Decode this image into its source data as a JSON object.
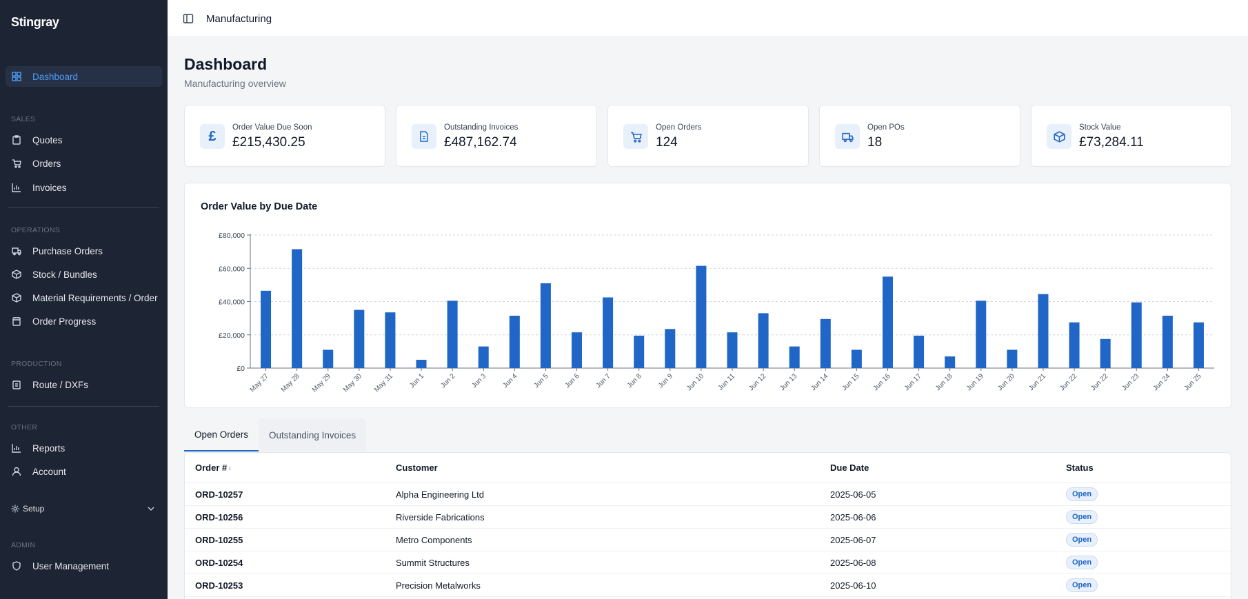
{
  "app": {
    "brand": "Stingray"
  },
  "sidebar": {
    "dashboard": "Dashboard",
    "sections": {
      "sales": "SALES",
      "operations": "OPERATIONS",
      "production": "PRODUCTION",
      "other": "OTHER",
      "admin": "ADMIN"
    },
    "sales_items": [
      "Quotes",
      "Orders",
      "Invoices"
    ],
    "operations_items": [
      "Purchase Orders",
      "Stock / Bundles",
      "Material Requirements / Order",
      "Order Progress"
    ],
    "production_items": [
      "Route / DXFs"
    ],
    "other_items": [
      "Reports",
      "Account"
    ],
    "setup": "Setup",
    "admin_items": [
      "User Management"
    ]
  },
  "topbar": {
    "breadcrumb": "Manufacturing"
  },
  "page": {
    "title": "Dashboard",
    "subtitle": "Manufacturing overview"
  },
  "kpis": [
    {
      "label": "Order Value Due Soon",
      "value": "£215,430.25",
      "icon": "pound-icon"
    },
    {
      "label": "Outstanding Invoices",
      "value": "£487,162.74",
      "icon": "document-icon"
    },
    {
      "label": "Open Orders",
      "value": "124",
      "icon": "cart-icon"
    },
    {
      "label": "Open POs",
      "value": "18",
      "icon": "truck-icon"
    },
    {
      "label": "Stock Value",
      "value": "£73,284.11",
      "icon": "box-icon"
    }
  ],
  "chart_data": {
    "type": "bar",
    "title": "Order Value by Due Date",
    "categories": [
      "May 27",
      "May 28",
      "May 29",
      "May 30",
      "May 31",
      "Jun 1",
      "Jun 2",
      "Jun 3",
      "Jun 4",
      "Jun 5",
      "Jun 6",
      "Jun 7",
      "Jun 8",
      "Jun 9",
      "Jun 10",
      "Jun 11",
      "Jun 12",
      "Jun 13",
      "Jun 14",
      "Jun 15",
      "Jun 16",
      "Jun 17",
      "Jun 18",
      "Jun 19",
      "Jun 20",
      "Jun 21",
      "Jun 22",
      "Jun 22",
      "Jun 23",
      "Jun 24",
      "Jun 25"
    ],
    "values": [
      46500,
      71500,
      11000,
      35000,
      33500,
      5000,
      40500,
      13000,
      31500,
      51000,
      21500,
      42500,
      19500,
      23500,
      61500,
      21500,
      33000,
      13000,
      29500,
      11000,
      55000,
      19500,
      7000,
      40500,
      11000,
      44500,
      27500,
      17500,
      39500,
      31500,
      27500
    ],
    "yticks": [
      "£0",
      "£20,000",
      "£40,000",
      "£60,000",
      "£80,000"
    ],
    "ylim": [
      0,
      80000
    ],
    "grid": true,
    "color": "#1f66c6"
  },
  "tabs": [
    "Open Orders",
    "Outstanding Invoices"
  ],
  "table": {
    "headers": [
      "Order #",
      "Customer",
      "Due Date",
      "Status"
    ],
    "sort_indicator": "↕",
    "rows": [
      [
        "ORD-10257",
        "Alpha Engineering Ltd",
        "2025-06-05",
        "Open"
      ],
      [
        "ORD-10256",
        "Riverside Fabrications",
        "2025-06-06",
        "Open"
      ],
      [
        "ORD-10255",
        "Metro Components",
        "2025-06-07",
        "Open"
      ],
      [
        "ORD-10254",
        "Summit Structures",
        "2025-06-08",
        "Open"
      ],
      [
        "ORD-10253",
        "Precision Metalworks",
        "2025-06-10",
        "Open"
      ]
    ]
  },
  "colors": {
    "sidebar": "#1d2433",
    "accent": "#1f66c6",
    "active_nav": "#4f9cf5"
  }
}
